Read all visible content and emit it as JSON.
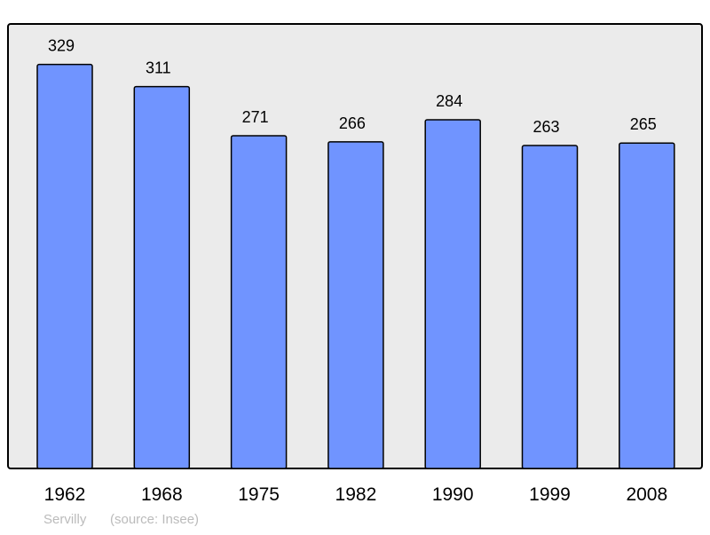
{
  "chart_data": {
    "type": "bar",
    "categories": [
      "1962",
      "1968",
      "1975",
      "1982",
      "1990",
      "1999",
      "2008"
    ],
    "values": [
      329,
      311,
      271,
      266,
      284,
      263,
      265
    ],
    "title": "",
    "xlabel": "",
    "ylabel": "",
    "ylim": [
      0,
      362
    ],
    "grid": false,
    "data_labels": true,
    "colors": {
      "bar": "#7094ff",
      "plot_background": "#ebebeb",
      "border": "#000000",
      "footer_text": "#bbbbbb"
    }
  },
  "footer": {
    "place": "Servilly",
    "source": "(source: Insee)"
  }
}
